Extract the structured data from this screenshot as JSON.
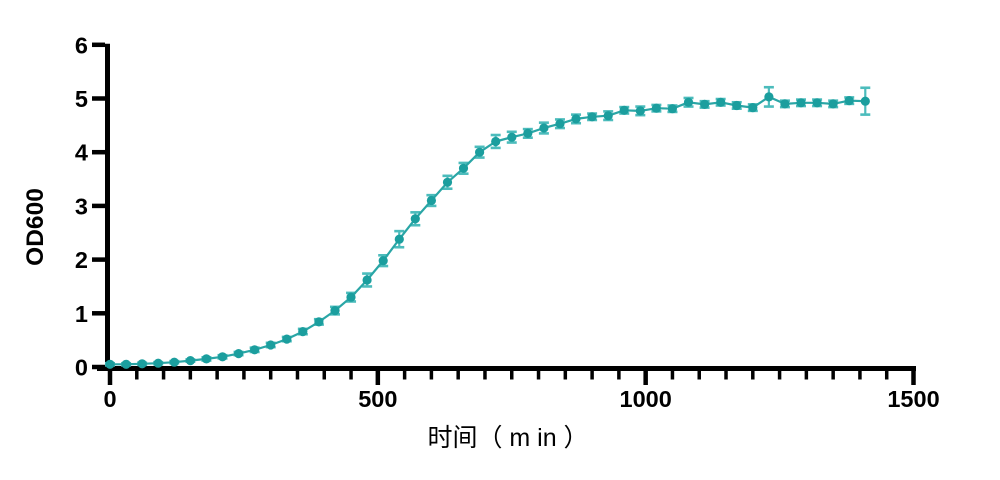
{
  "page": {
    "background": "#ffffff"
  },
  "chart_data": {
    "type": "line",
    "title": "",
    "xlabel": "时间（ m in ）",
    "ylabel": "OD600",
    "xlim": [
      0,
      1500
    ],
    "ylim": [
      0,
      6
    ],
    "x_major_ticks": [
      0,
      500,
      1000,
      1500
    ],
    "x_minor_tick_step": 50,
    "y_ticks": [
      0,
      1,
      2,
      3,
      4,
      5,
      6
    ],
    "grid": false,
    "legend_position": "none",
    "axis_color": "#000000",
    "series": [
      {
        "name": "OD600 growth curve",
        "marker": "circle",
        "color": "#1B9E9E",
        "line_color": "#2AA6A6",
        "error_color": "#4CBCBC",
        "x": [
          0,
          30,
          60,
          90,
          120,
          150,
          180,
          210,
          240,
          270,
          300,
          330,
          360,
          390,
          420,
          450,
          480,
          510,
          540,
          570,
          600,
          630,
          660,
          690,
          720,
          750,
          780,
          810,
          840,
          870,
          900,
          930,
          960,
          990,
          1020,
          1050,
          1080,
          1110,
          1140,
          1170,
          1200,
          1230,
          1260,
          1290,
          1320,
          1350,
          1380,
          1410
        ],
        "y": [
          0.05,
          0.05,
          0.06,
          0.07,
          0.09,
          0.12,
          0.15,
          0.19,
          0.25,
          0.32,
          0.41,
          0.52,
          0.66,
          0.84,
          1.05,
          1.3,
          1.62,
          1.98,
          2.38,
          2.76,
          3.1,
          3.44,
          3.7,
          4.0,
          4.2,
          4.28,
          4.35,
          4.45,
          4.53,
          4.62,
          4.66,
          4.68,
          4.78,
          4.77,
          4.82,
          4.81,
          4.93,
          4.89,
          4.93,
          4.87,
          4.83,
          5.03,
          4.9,
          4.92,
          4.92,
          4.9,
          4.96,
          4.95
        ],
        "yerr": [
          0.02,
          0.02,
          0.02,
          0.02,
          0.02,
          0.02,
          0.03,
          0.03,
          0.03,
          0.04,
          0.04,
          0.04,
          0.05,
          0.05,
          0.07,
          0.08,
          0.12,
          0.1,
          0.15,
          0.12,
          0.1,
          0.12,
          0.1,
          0.1,
          0.12,
          0.1,
          0.08,
          0.1,
          0.08,
          0.08,
          0.06,
          0.08,
          0.06,
          0.08,
          0.06,
          0.06,
          0.08,
          0.06,
          0.06,
          0.06,
          0.06,
          0.18,
          0.06,
          0.06,
          0.06,
          0.06,
          0.06,
          0.25
        ]
      }
    ]
  }
}
